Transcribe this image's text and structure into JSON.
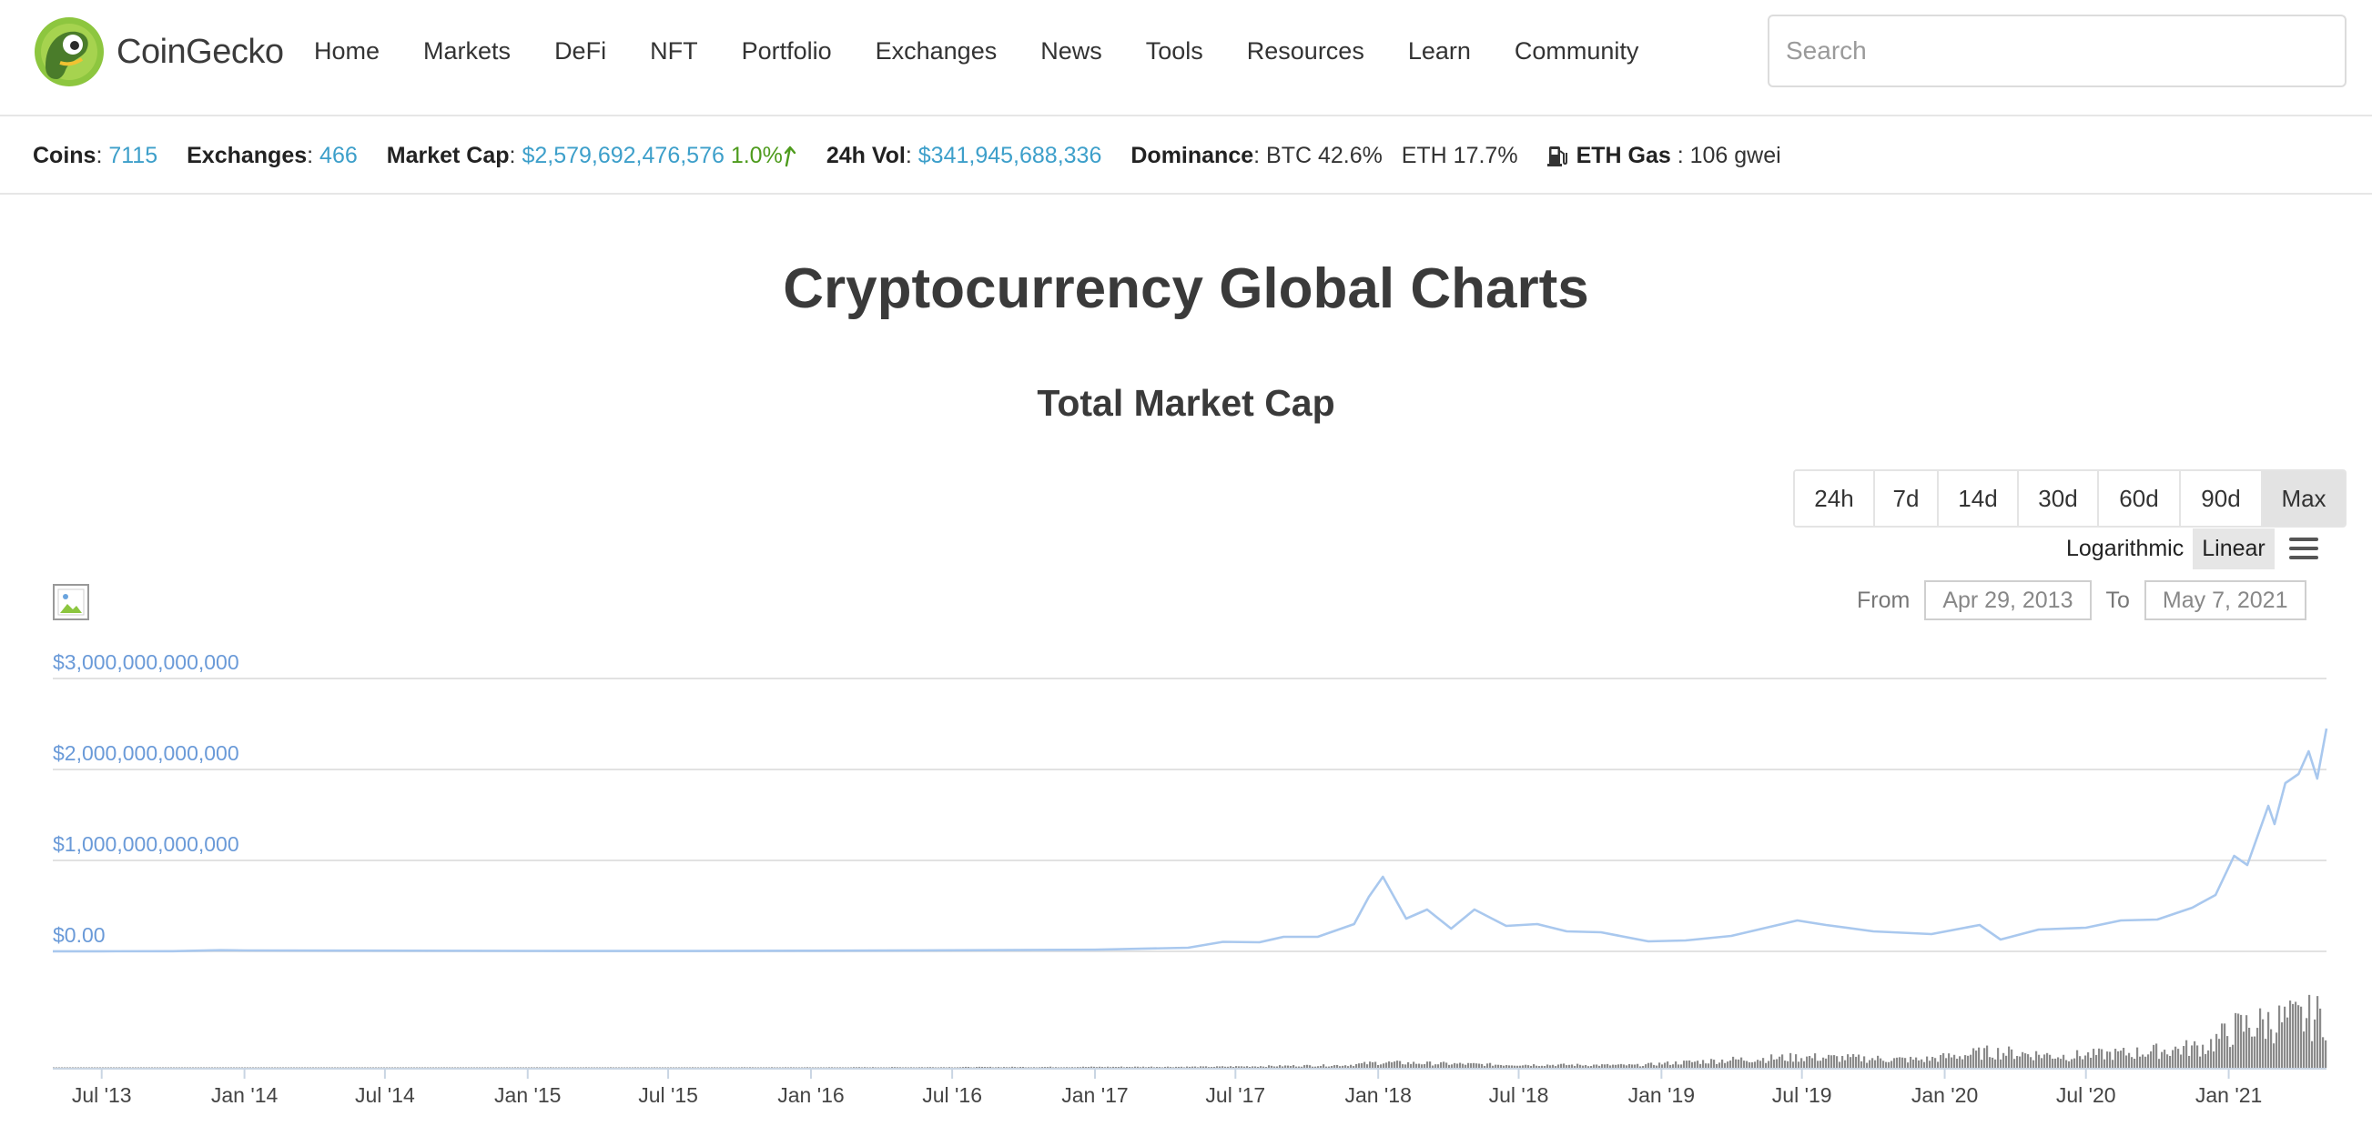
{
  "nav": {
    "brand": "CoinGecko",
    "items": [
      "Home",
      "Markets",
      "DeFi",
      "NFT",
      "Portfolio",
      "Exchanges",
      "News",
      "Tools",
      "Resources",
      "Learn",
      "Community"
    ],
    "search_placeholder": "Search"
  },
  "stats": {
    "coins_label": "Coins",
    "coins_value": "7115",
    "exchanges_label": "Exchanges",
    "exchanges_value": "466",
    "market_cap_label": "Market Cap",
    "market_cap_value": "$2,579,692,476,576",
    "market_cap_change": "1.0%",
    "vol_label": "24h Vol",
    "vol_value": "$341,945,688,336",
    "dominance_label": "Dominance",
    "dominance_btc": "BTC 42.6%",
    "dominance_eth": "ETH 17.7%",
    "gas_label": "ETH Gas",
    "gas_value": ": 106 gwei"
  },
  "page_title": "Cryptocurrency Global Charts",
  "chart_title": "Total Market Cap",
  "ranges": [
    "24h",
    "7d",
    "14d",
    "30d",
    "60d",
    "90d",
    "Max"
  ],
  "active_range": "Max",
  "scale": {
    "log_label": "Logarithmic",
    "linear_label": "Linear",
    "active": "Linear"
  },
  "date_range": {
    "from_label": "From",
    "from_value": "Apr 29, 2013",
    "to_label": "To",
    "to_value": "May 7, 2021"
  },
  "colors": {
    "line": "#a9c8ee",
    "axis_label": "#6a9ad8",
    "grid": "#e2e2e2",
    "volume": "#8a8a8a",
    "link": "#3d9fca",
    "positive": "#4e9b1d"
  },
  "chart_data": {
    "type": "line",
    "title": "Total Market Cap",
    "y_ticks": [
      {
        "value": 0,
        "label": "$0.00"
      },
      {
        "value": 1000000000000,
        "label": "$1,000,000,000,000"
      },
      {
        "value": 2000000000000,
        "label": "$2,000,000,000,000"
      },
      {
        "value": 3000000000000,
        "label": "$3,000,000,000,000"
      }
    ],
    "ylim": [
      0,
      3000000000000
    ],
    "xlim": [
      "2013-04-29",
      "2021-05-07"
    ],
    "x_ticks": [
      {
        "date": "2013-07-01",
        "label": "Jul '13"
      },
      {
        "date": "2014-01-01",
        "label": "Jan '14"
      },
      {
        "date": "2014-07-01",
        "label": "Jul '14"
      },
      {
        "date": "2015-01-01",
        "label": "Jan '15"
      },
      {
        "date": "2015-07-01",
        "label": "Jul '15"
      },
      {
        "date": "2016-01-01",
        "label": "Jan '16"
      },
      {
        "date": "2016-07-01",
        "label": "Jul '16"
      },
      {
        "date": "2017-01-01",
        "label": "Jan '17"
      },
      {
        "date": "2017-07-01",
        "label": "Jul '17"
      },
      {
        "date": "2018-01-01",
        "label": "Jan '18"
      },
      {
        "date": "2018-07-01",
        "label": "Jul '18"
      },
      {
        "date": "2019-01-01",
        "label": "Jan '19"
      },
      {
        "date": "2019-07-01",
        "label": "Jul '19"
      },
      {
        "date": "2020-01-01",
        "label": "Jan '20"
      },
      {
        "date": "2020-07-01",
        "label": "Jul '20"
      },
      {
        "date": "2021-01-01",
        "label": "Jan '21"
      }
    ],
    "series": [
      {
        "name": "Total Market Cap",
        "points": [
          [
            "2013-04-29",
            1500000000
          ],
          [
            "2013-07-01",
            1200000000
          ],
          [
            "2013-10-01",
            2000000000
          ],
          [
            "2013-12-01",
            13000000000
          ],
          [
            "2014-01-01",
            10000000000
          ],
          [
            "2014-06-01",
            8000000000
          ],
          [
            "2015-01-01",
            5000000000
          ],
          [
            "2015-07-01",
            4500000000
          ],
          [
            "2016-01-01",
            7000000000
          ],
          [
            "2016-07-01",
            12000000000
          ],
          [
            "2017-01-01",
            18000000000
          ],
          [
            "2017-05-01",
            40000000000
          ],
          [
            "2017-06-15",
            105000000000
          ],
          [
            "2017-08-01",
            100000000000
          ],
          [
            "2017-09-01",
            160000000000
          ],
          [
            "2017-10-15",
            160000000000
          ],
          [
            "2017-12-01",
            300000000000
          ],
          [
            "2017-12-20",
            600000000000
          ],
          [
            "2018-01-07",
            820000000000
          ],
          [
            "2018-01-20",
            620000000000
          ],
          [
            "2018-02-06",
            360000000000
          ],
          [
            "2018-03-05",
            460000000000
          ],
          [
            "2018-04-05",
            250000000000
          ],
          [
            "2018-05-05",
            460000000000
          ],
          [
            "2018-06-15",
            280000000000
          ],
          [
            "2018-07-25",
            300000000000
          ],
          [
            "2018-09-01",
            220000000000
          ],
          [
            "2018-10-15",
            210000000000
          ],
          [
            "2018-12-15",
            110000000000
          ],
          [
            "2019-02-01",
            120000000000
          ],
          [
            "2019-04-01",
            170000000000
          ],
          [
            "2019-06-25",
            340000000000
          ],
          [
            "2019-08-01",
            290000000000
          ],
          [
            "2019-10-01",
            220000000000
          ],
          [
            "2019-12-15",
            190000000000
          ],
          [
            "2020-02-15",
            290000000000
          ],
          [
            "2020-03-13",
            130000000000
          ],
          [
            "2020-05-01",
            240000000000
          ],
          [
            "2020-07-01",
            260000000000
          ],
          [
            "2020-08-15",
            340000000000
          ],
          [
            "2020-10-01",
            350000000000
          ],
          [
            "2020-11-15",
            480000000000
          ],
          [
            "2020-12-15",
            620000000000
          ],
          [
            "2021-01-08",
            1050000000000
          ],
          [
            "2021-01-25",
            950000000000
          ],
          [
            "2021-02-21",
            1600000000000
          ],
          [
            "2021-03-01",
            1400000000000
          ],
          [
            "2021-03-15",
            1850000000000
          ],
          [
            "2021-04-01",
            1950000000000
          ],
          [
            "2021-04-14",
            2200000000000
          ],
          [
            "2021-04-25",
            1900000000000
          ],
          [
            "2021-05-07",
            2450000000000
          ]
        ]
      }
    ],
    "volume_series": [
      [
        "2013-04-29",
        0.005
      ],
      [
        "2016-01-01",
        0.008
      ],
      [
        "2017-06-01",
        0.02
      ],
      [
        "2017-11-20",
        0.05
      ],
      [
        "2018-01-01",
        0.1
      ],
      [
        "2018-06-01",
        0.06
      ],
      [
        "2018-12-01",
        0.05
      ],
      [
        "2019-01-01",
        0.08
      ],
      [
        "2019-04-01",
        0.15
      ],
      [
        "2019-07-01",
        0.2
      ],
      [
        "2019-12-01",
        0.15
      ],
      [
        "2020-03-01",
        0.3
      ],
      [
        "2020-06-01",
        0.22
      ],
      [
        "2020-09-01",
        0.28
      ],
      [
        "2020-12-01",
        0.4
      ],
      [
        "2021-01-10",
        0.75
      ],
      [
        "2021-02-20",
        0.85
      ],
      [
        "2021-04-20",
        0.95
      ],
      [
        "2021-05-07",
        1.0
      ]
    ]
  }
}
